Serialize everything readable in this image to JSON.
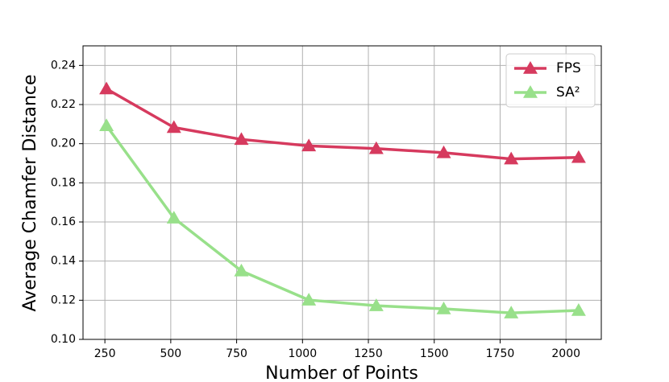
{
  "chart_data": {
    "type": "line",
    "x_label": "Number of Points",
    "y_label": "Average Chamfer Distance",
    "x": [
      256,
      512,
      768,
      1024,
      1280,
      1536,
      1792,
      2048
    ],
    "series": [
      {
        "name": "FPS",
        "color": "#d63a5e",
        "values": [
          0.228,
          0.2083,
          0.2022,
          0.1989,
          0.1975,
          0.1954,
          0.1922,
          0.193
        ]
      },
      {
        "name": "SA²",
        "color": "#98e08a",
        "values": [
          0.2092,
          0.162,
          0.135,
          0.1201,
          0.1172,
          0.1156,
          0.1135,
          0.1148
        ]
      }
    ],
    "xlim": [
      167,
      2134
    ],
    "xticks": [
      250,
      500,
      750,
      1000,
      1250,
      1500,
      1750,
      2000
    ],
    "ylim": [
      0.1,
      0.25
    ],
    "yticks": [
      {
        "value": 0.1,
        "label": "0.10"
      },
      {
        "value": 0.12,
        "label": "0.12"
      },
      {
        "value": 0.14,
        "label": "0.14"
      },
      {
        "value": 0.16,
        "label": "0.16"
      },
      {
        "value": 0.18,
        "label": "0.18"
      },
      {
        "value": 0.2,
        "label": "0.20"
      },
      {
        "value": 0.22,
        "label": "0.22"
      },
      {
        "value": 0.24,
        "label": "0.24"
      }
    ],
    "grid": true,
    "legend": "upper right"
  }
}
